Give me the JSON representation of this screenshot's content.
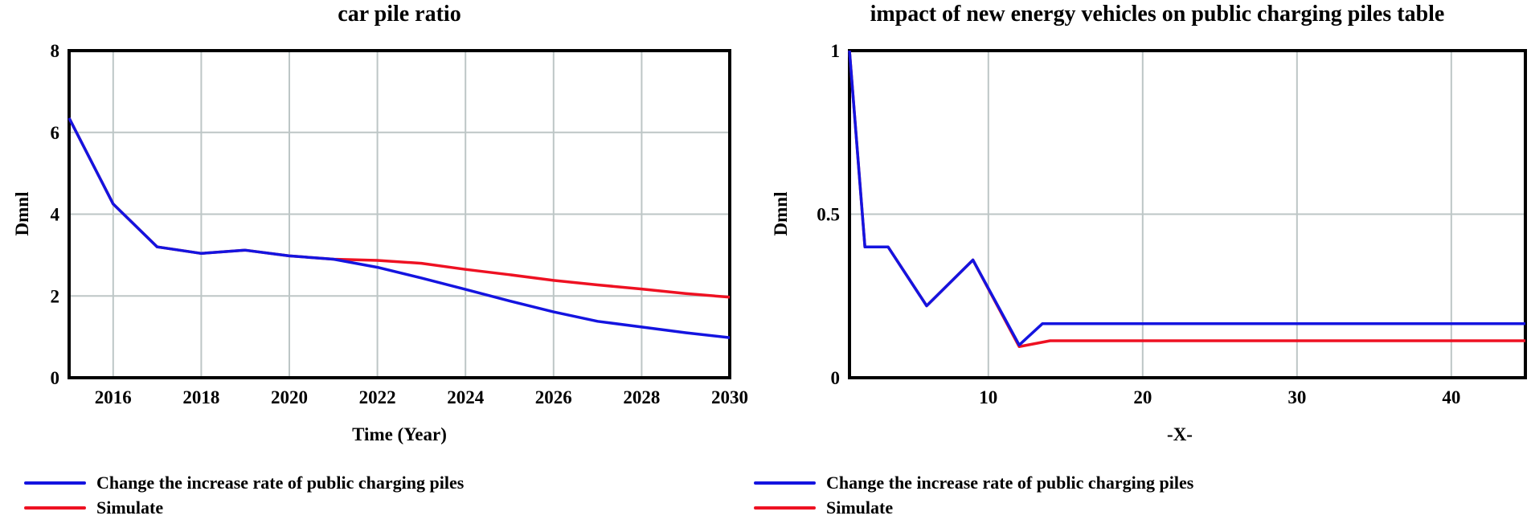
{
  "figure": {
    "background": "#ffffff",
    "frame_color": "#000000",
    "grid_color": "#bdc6c6"
  },
  "chart_data": [
    {
      "type": "line",
      "title": "car pile ratio",
      "xlabel": "Time (Year)",
      "ylabel": "Dmnl",
      "xlim": [
        2015,
        2030
      ],
      "ylim": [
        0,
        8
      ],
      "x_ticks": [
        2016,
        2018,
        2020,
        2022,
        2024,
        2026,
        2028,
        2030
      ],
      "y_ticks": [
        0,
        2,
        4,
        6,
        8
      ],
      "grid": true,
      "legend_position": "bottom-left",
      "series": [
        {
          "name": "Change the increase rate of public charging piles",
          "color": "#1414e0",
          "points": [
            [
              2015,
              6.35
            ],
            [
              2016,
              4.25
            ],
            [
              2017,
              3.2
            ],
            [
              2018,
              3.04
            ],
            [
              2019,
              3.12
            ],
            [
              2020,
              2.98
            ],
            [
              2021,
              2.9
            ],
            [
              2022,
              2.7
            ],
            [
              2023,
              2.44
            ],
            [
              2024,
              2.16
            ],
            [
              2025,
              1.88
            ],
            [
              2026,
              1.61
            ],
            [
              2027,
              1.38
            ],
            [
              2028,
              1.24
            ],
            [
              2029,
              1.1
            ],
            [
              2030,
              0.98
            ]
          ]
        },
        {
          "name": "Simulate",
          "color": "#ee1122",
          "points": [
            [
              2015,
              6.35
            ],
            [
              2016,
              4.25
            ],
            [
              2017,
              3.2
            ],
            [
              2018,
              3.04
            ],
            [
              2019,
              3.12
            ],
            [
              2020,
              2.98
            ],
            [
              2021,
              2.9
            ],
            [
              2022,
              2.87
            ],
            [
              2023,
              2.8
            ],
            [
              2024,
              2.65
            ],
            [
              2025,
              2.52
            ],
            [
              2026,
              2.38
            ],
            [
              2027,
              2.27
            ],
            [
              2028,
              2.17
            ],
            [
              2029,
              2.06
            ],
            [
              2030,
              1.97
            ]
          ]
        }
      ]
    },
    {
      "type": "line",
      "title": "impact of new energy vehicles on public charging piles table",
      "xlabel": "-X-",
      "ylabel": "Dmnl",
      "xlim": [
        1,
        44.8
      ],
      "ylim": [
        0,
        1
      ],
      "x_ticks": [
        10,
        20,
        30,
        40
      ],
      "y_ticks": [
        0,
        0.5,
        1
      ],
      "grid": true,
      "legend_position": "bottom-left",
      "series": [
        {
          "name": "Change the increase rate of public charging piles",
          "color": "#1414e0",
          "points": [
            [
              1,
              1.0
            ],
            [
              2,
              0.4
            ],
            [
              3.5,
              0.4
            ],
            [
              6,
              0.22
            ],
            [
              9,
              0.36
            ],
            [
              12,
              0.1
            ],
            [
              13.5,
              0.165
            ],
            [
              44.8,
              0.165
            ]
          ]
        },
        {
          "name": "Simulate",
          "color": "#ee1122",
          "points": [
            [
              1,
              1.0
            ],
            [
              2,
              0.4
            ],
            [
              3.5,
              0.4
            ],
            [
              6,
              0.22
            ],
            [
              9,
              0.36
            ],
            [
              12,
              0.095
            ],
            [
              14,
              0.113
            ],
            [
              44.8,
              0.113
            ]
          ]
        }
      ]
    }
  ]
}
